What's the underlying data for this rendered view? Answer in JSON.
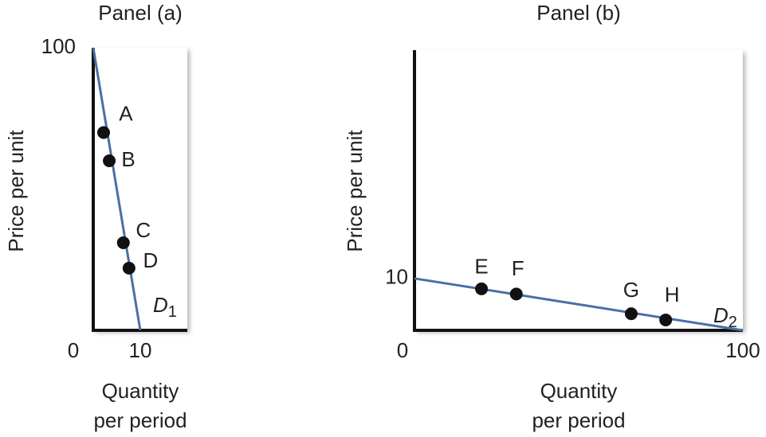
{
  "chart_data": [
    {
      "type": "line",
      "title": "Panel (a)",
      "y_label": "Price per unit",
      "x_label_lines": [
        "Quantity",
        "per period"
      ],
      "xlim": [
        0,
        20
      ],
      "ylim": [
        0,
        100
      ],
      "xticks": [
        0,
        10
      ],
      "yticks": [
        100
      ],
      "line": {
        "x": [
          0,
          10
        ],
        "values": [
          100,
          0
        ],
        "color": "#4a6fa5"
      },
      "points": {
        "labels": [
          "A",
          "B",
          "C",
          "D"
        ],
        "x": [
          2.2,
          3.4,
          6.4,
          7.6
        ],
        "values": [
          70,
          60,
          31,
          22
        ],
        "color": "#111111"
      },
      "curve_label": {
        "text": "D",
        "subscript": "1"
      }
    },
    {
      "type": "line",
      "title": "Panel (b)",
      "y_label": "Price per unit",
      "x_label_lines": [
        "Quantity",
        "per period"
      ],
      "xlim": [
        0,
        100
      ],
      "ylim": [
        0,
        54
      ],
      "xticks": [
        0,
        100
      ],
      "yticks": [
        10
      ],
      "line": {
        "x": [
          0,
          100
        ],
        "values": [
          10,
          0
        ],
        "color": "#4a6fa5"
      },
      "points": {
        "labels": [
          "E",
          "F",
          "G",
          "H"
        ],
        "x": [
          20.4,
          31,
          66,
          76.5
        ],
        "values": [
          8,
          7,
          3.2,
          2
        ],
        "color": "#111111"
      },
      "curve_label": {
        "text": "D",
        "subscript": "2"
      }
    }
  ]
}
